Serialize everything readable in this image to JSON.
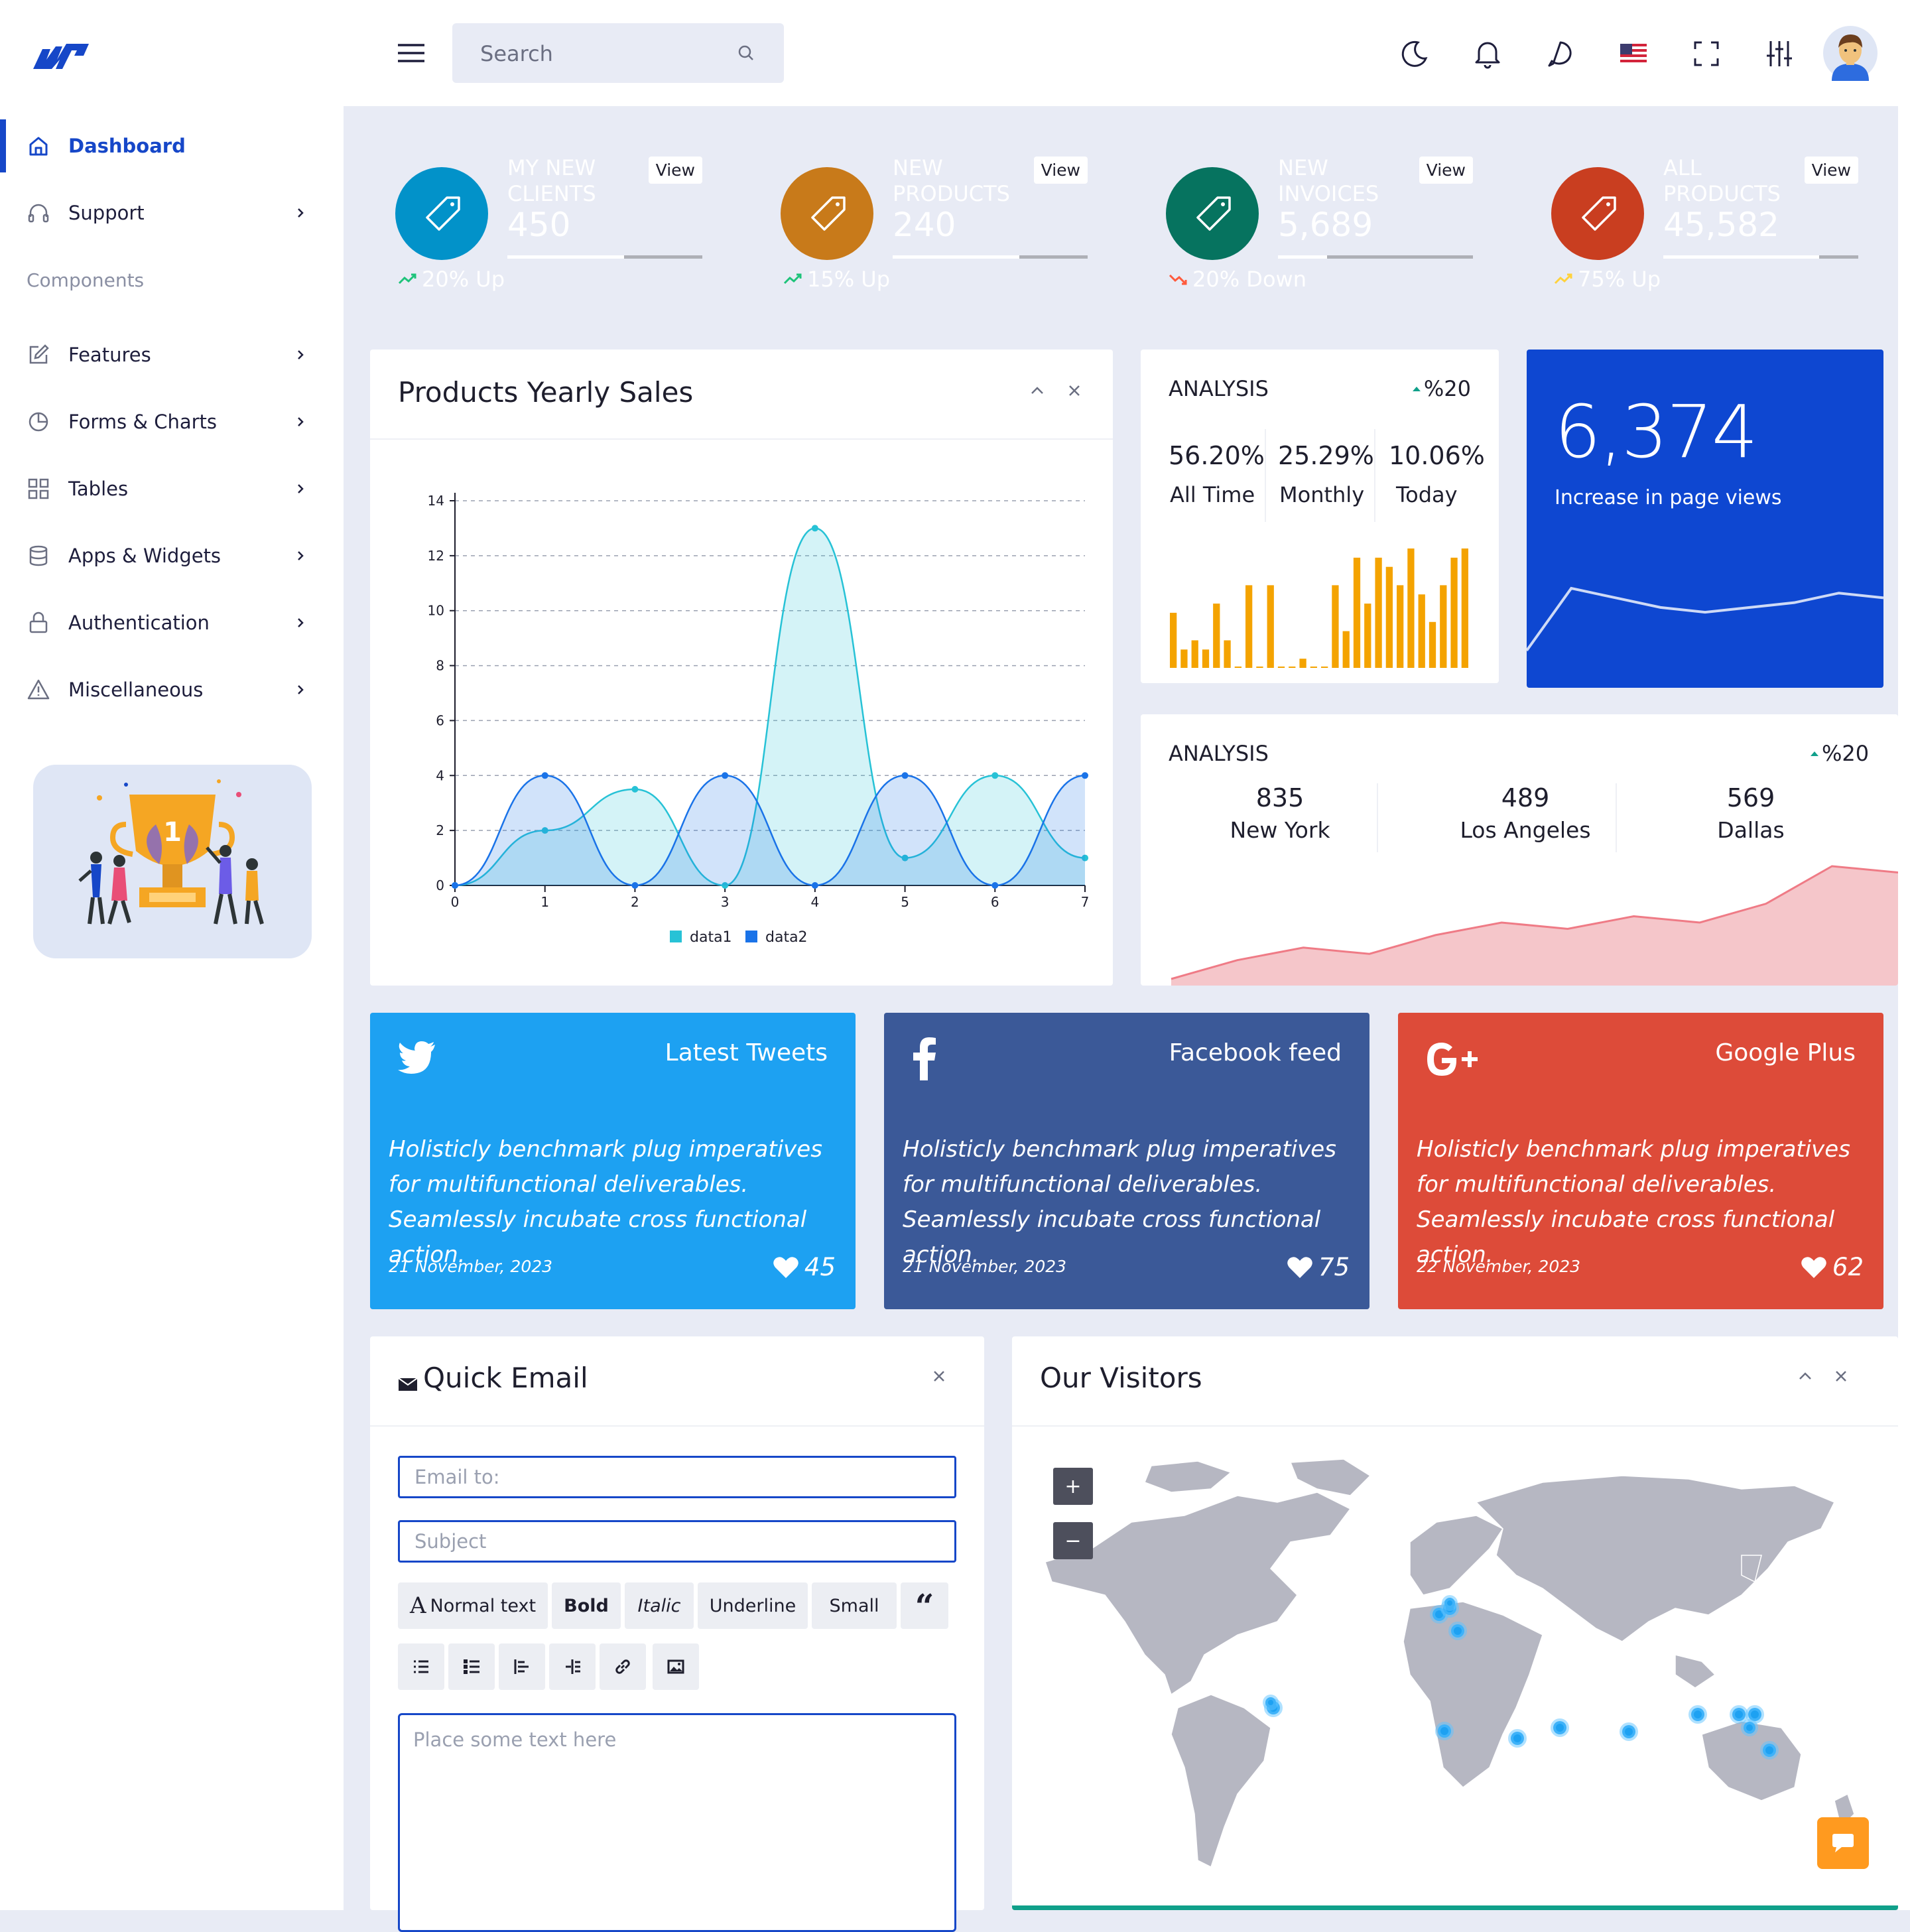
{
  "search": {
    "placeholder": "Search"
  },
  "sidebar": {
    "items": [
      {
        "label": "Dashboard"
      },
      {
        "label": "Support"
      },
      {
        "label": "Features"
      },
      {
        "label": "Forms & Charts"
      },
      {
        "label": "Tables"
      },
      {
        "label": "Apps & Widgets"
      },
      {
        "label": "Authentication"
      },
      {
        "label": "Miscellaneous"
      }
    ],
    "section_label": "Components",
    "trophy_number": "1"
  },
  "stats": [
    {
      "title": "MY NEW CLIENTS",
      "value": "450",
      "view": "View",
      "trend": "20% Up",
      "progress": 0.6,
      "color": "#00b3f5"
    },
    {
      "title": "NEW PRODUCTS",
      "value": "240",
      "view": "View",
      "trend": "15% Up",
      "progress": 0.65,
      "color": "#ff9a1f"
    },
    {
      "title": "NEW INVOICES",
      "value": "5,689",
      "view": "View",
      "trend": "20% Down",
      "progress": 0.25,
      "color": "#10a08a"
    },
    {
      "title": "ALL PRODUCTS",
      "value": "45,582",
      "view": "View",
      "trend": "75% Up",
      "progress": 0.8,
      "color": "#ff5631"
    }
  ],
  "yearly": {
    "title": "Products Yearly Sales"
  },
  "chart_data": {
    "type": "area",
    "x": [
      0,
      1,
      2,
      3,
      4,
      5,
      6,
      7
    ],
    "series": [
      {
        "name": "data1",
        "values": [
          0,
          2,
          3.5,
          0,
          13,
          1,
          4,
          1
        ]
      },
      {
        "name": "data2",
        "values": [
          0,
          4,
          0,
          4,
          0,
          4,
          0,
          4
        ]
      }
    ],
    "ylim": [
      0,
      14
    ],
    "yticks": [
      0,
      2,
      4,
      6,
      8,
      10,
      12,
      14
    ],
    "xticks": [
      0,
      1,
      2,
      3,
      4,
      5,
      6,
      7
    ],
    "grid": true,
    "legend": "bottom",
    "colors": {
      "data1": "#27c2d6",
      "data2": "#1a73e8"
    }
  },
  "analysis1": {
    "title": "ANALYSIS",
    "change": "%20",
    "stats": [
      {
        "value": "56.20%",
        "label": "All Time"
      },
      {
        "value": "25.29%",
        "label": "Monthly"
      },
      {
        "value": "10.06%",
        "label": "Today"
      }
    ],
    "bars": [
      6,
      2,
      3,
      2,
      7,
      3,
      0,
      9,
      0,
      9,
      0,
      0,
      1,
      0,
      0,
      9,
      4,
      12,
      7,
      12,
      11,
      9,
      13,
      8,
      5,
      9,
      12,
      13
    ]
  },
  "pageviews": {
    "value": "6,374",
    "label": "Increase in page views",
    "trend": [
      5,
      18,
      16,
      14,
      13,
      14,
      15,
      17,
      16
    ]
  },
  "analysis2": {
    "title": "ANALYSIS",
    "change": "%20",
    "cities": [
      {
        "value": "835",
        "label": "New York"
      },
      {
        "value": "489",
        "label": "Los Angeles"
      },
      {
        "value": "569",
        "label": "Dallas"
      }
    ],
    "trend": [
      0,
      3,
      5,
      4,
      7,
      9,
      8,
      10,
      9,
      12,
      18,
      17
    ]
  },
  "social": [
    {
      "name": "Latest Tweets",
      "text": "Holisticly benchmark plug imperatives for multifunctional deliverables. Seamlessly incubate cross functional action.",
      "date": "21 November, 2023",
      "likes": "45",
      "color": "#1da1f2",
      "icon": "twitter-icon"
    },
    {
      "name": "Facebook feed",
      "text": "Holisticly benchmark plug imperatives for multifunctional deliverables. Seamlessly incubate cross functional action.",
      "date": "21 November, 2023",
      "likes": "75",
      "color": "#3b5998",
      "icon": "facebook-icon"
    },
    {
      "name": "Google Plus",
      "text": "Holisticly benchmark plug imperatives for multifunctional deliverables. Seamlessly incubate cross functional action.",
      "date": "22 November, 2023",
      "likes": "62",
      "color": "#dd4b39",
      "icon": "google-plus-icon"
    }
  ],
  "email": {
    "title": "Quick Email",
    "to_placeholder": "Email to:",
    "subject_placeholder": "Subject",
    "body_placeholder": "Place some text here",
    "tools": {
      "normal": "Normal text",
      "bold": "Bold",
      "italic": "Italic",
      "underline": "Underline",
      "small": "Small",
      "quote": "“",
      "normal_glyph": "A"
    }
  },
  "visitors": {
    "title": "Our Visitors",
    "zoom_in": "+",
    "zoom_out": "−"
  }
}
